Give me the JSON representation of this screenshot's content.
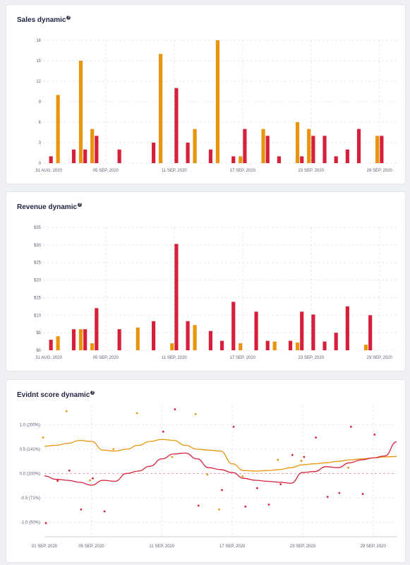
{
  "colors": {
    "orange": "#e8950c",
    "red": "#d6203a",
    "grid": "#e6e8ee",
    "axis": "#5a5f73",
    "baseline": "#f2a0a8"
  },
  "dates": [
    "31 AUG",
    "01 SEP",
    "02 SEP",
    "03 SEP",
    "04 SEP",
    "05 SEP",
    "06 SEP",
    "07 SEP",
    "08 SEP",
    "09 SEP",
    "10 SEP",
    "11 SEP",
    "12 SEP",
    "13 SEP",
    "14 SEP",
    "15 SEP",
    "16 SEP",
    "17 SEP",
    "18 SEP",
    "19 SEP",
    "20 SEP",
    "21 SEP",
    "22 SEP",
    "23 SEP",
    "24 SEP",
    "25 SEP",
    "26 SEP",
    "27 SEP",
    "28 SEP",
    "29 SEP",
    "30 SEP"
  ],
  "chart_data": [
    {
      "type": "bar",
      "title": "Sales dynamic",
      "help_icon": "question-icon",
      "ylim": [
        0,
        18
      ],
      "yticks": [
        "0",
        "3",
        "6",
        "9",
        "12",
        "15",
        "18"
      ],
      "xticks": [
        "31 AUG, 2020",
        "05 SEP, 2020",
        "11 SEP, 2020",
        "17 SEP, 2020",
        "23 SEP, 2020",
        "29 SEP, 2020"
      ],
      "series": [
        {
          "color": "orange",
          "values": [
            0,
            10,
            0,
            15,
            5,
            0,
            0,
            0,
            0,
            0,
            16,
            0,
            0,
            5,
            0,
            18,
            0,
            1,
            0,
            5,
            0,
            0,
            6,
            5,
            0,
            0,
            0,
            0,
            0,
            4,
            0
          ]
        },
        {
          "color": "red",
          "values": [
            1,
            0,
            2,
            2,
            4,
            0,
            2,
            0,
            0,
            3,
            0,
            11,
            3,
            0,
            2,
            0,
            1,
            5,
            0,
            4,
            1,
            0,
            1,
            4,
            4,
            1,
            2,
            5,
            0,
            4,
            0
          ]
        }
      ]
    },
    {
      "type": "bar",
      "title": "Revenue dynamic",
      "help_icon": "question-icon",
      "ylim": [
        0,
        35
      ],
      "yticks": [
        "$0",
        "$5",
        "$10",
        "$15",
        "$20",
        "$25",
        "$30",
        "$35"
      ],
      "xticks": [
        "31 AUG, 2020",
        "05 SEP, 2020",
        "11 SEP, 2020",
        "17 SEP, 2020",
        "23 SEP, 2020",
        "29 SEP, 2020"
      ],
      "series": [
        {
          "color": "orange",
          "values": [
            0,
            4,
            0,
            6,
            2,
            0,
            0,
            0,
            6.5,
            0,
            0,
            2,
            0,
            7.2,
            0,
            0,
            0,
            2,
            0,
            0,
            2.5,
            0,
            2.2,
            0,
            0,
            0,
            0,
            0,
            1.6,
            0,
            0
          ]
        },
        {
          "color": "red",
          "values": [
            3,
            0,
            6,
            6,
            12,
            0,
            6,
            0,
            0,
            8.3,
            0,
            30.3,
            8.3,
            0,
            5.5,
            2.7,
            13.8,
            0,
            11,
            2.7,
            0,
            2.7,
            11,
            10.2,
            2.5,
            5,
            12.5,
            0,
            10,
            0,
            0
          ]
        }
      ]
    },
    {
      "type": "line",
      "title": "Evidnt score dynamic",
      "help_icon": "question-icon",
      "ylim": [
        -1.3,
        1.4
      ],
      "yticks": [
        {
          "v": 1.0,
          "label": "1.0 (200%)"
        },
        {
          "v": 0.5,
          "label": "0.5 (141%)"
        },
        {
          "v": 0.0,
          "label": "0.0 (100%)"
        },
        {
          "v": -0.5,
          "label": "-0.5 (71%)"
        },
        {
          "v": -1.0,
          "label": "-1.0 (50%)"
        }
      ],
      "xticks": [
        "01 SEP, 2020",
        "05 SEP, 2020",
        "11 SEP, 2020",
        "17 SEP, 2020",
        "23 SEP, 2020",
        "29 SEP, 2020"
      ],
      "lines": [
        {
          "color": "orange",
          "values": [
            0.56,
            0.58,
            0.62,
            0.68,
            0.66,
            0.48,
            0.46,
            0.5,
            0.58,
            0.66,
            0.7,
            0.68,
            0.58,
            0.5,
            0.48,
            0.46,
            0.2,
            0.06,
            0.05,
            0.06,
            0.08,
            0.12,
            0.18,
            0.2,
            0.22,
            0.25,
            0.28,
            0.3,
            0.32,
            0.34,
            0.35
          ]
        },
        {
          "color": "red",
          "values": [
            -0.05,
            -0.12,
            -0.14,
            -0.18,
            -0.24,
            -0.14,
            -0.16,
            0.0,
            0.05,
            0.15,
            0.3,
            0.4,
            0.42,
            0.3,
            0.12,
            0.08,
            0.02,
            -0.1,
            -0.14,
            -0.16,
            -0.18,
            -0.2,
            0.02,
            0.04,
            0.14,
            0.12,
            0.22,
            0.28,
            0.32,
            0.36,
            0.65
          ]
        }
      ],
      "points": [
        {
          "color": "orange",
          "values": [
            0.74,
            null,
            1.28,
            null,
            -0.14,
            null,
            0.5,
            null,
            1.24,
            null,
            null,
            0.34,
            null,
            1.22,
            -0.02,
            -0.74,
            null,
            -0.06,
            null,
            null,
            0.28,
            null,
            0.26,
            null,
            null,
            null,
            0.12,
            null,
            null,
            null,
            null
          ]
        },
        {
          "color": "red",
          "values": [
            -1.02,
            -0.15,
            0.06,
            -0.74,
            -0.1,
            -0.78,
            null,
            null,
            null,
            null,
            0.86,
            1.32,
            null,
            -0.66,
            null,
            -0.34,
            0.96,
            -0.68,
            -0.3,
            -0.64,
            -0.22,
            0.38,
            0.34,
            0.74,
            -0.48,
            -0.4,
            0.96,
            -0.42,
            0.8,
            null,
            null
          ]
        }
      ]
    }
  ]
}
